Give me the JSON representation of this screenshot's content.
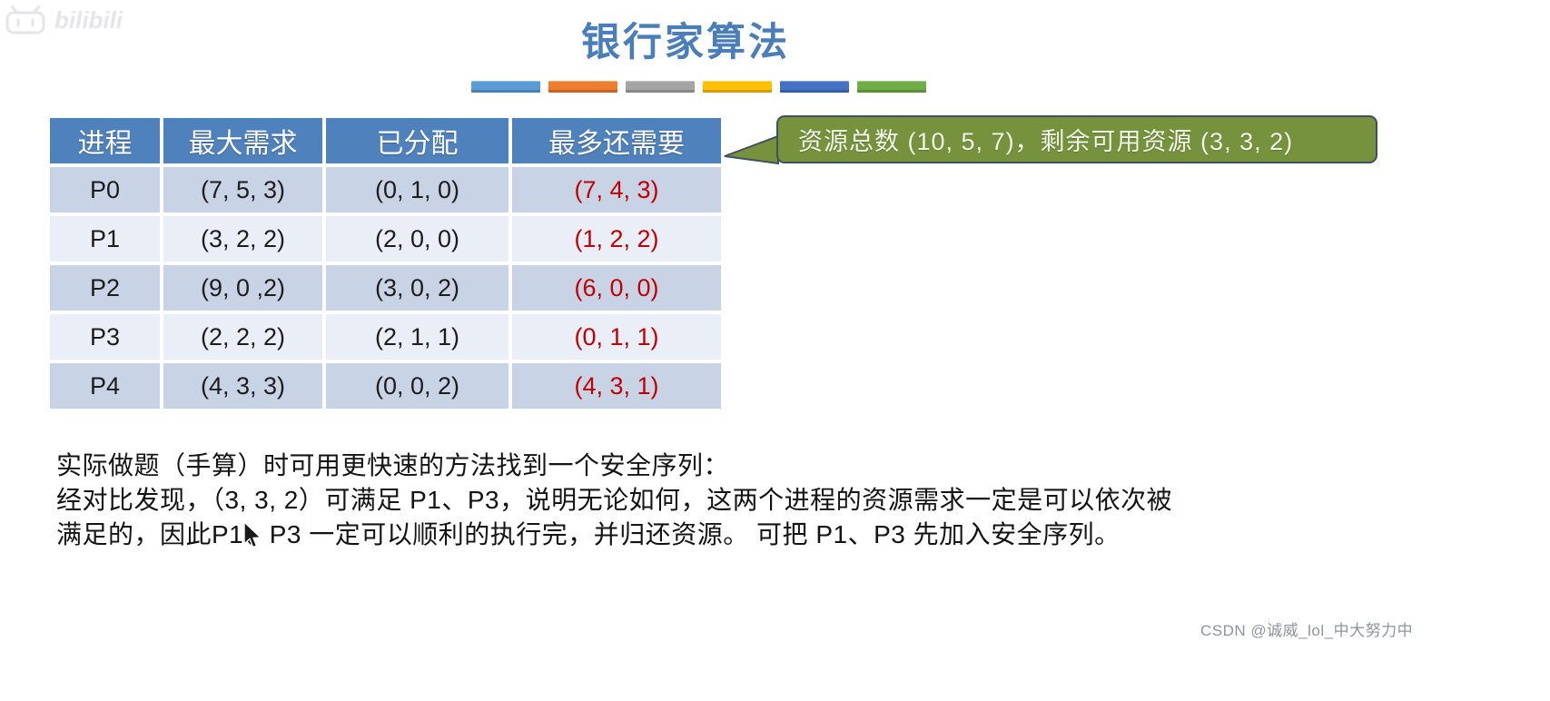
{
  "slide": {
    "title": "银行家算法",
    "accent_bar_colors": [
      "#5B9BD5",
      "#ED7D31",
      "#A5A5A5",
      "#FFC000",
      "#4472C4",
      "#70AD47"
    ]
  },
  "callout": {
    "text": "资源总数 (10, 5, 7)，剩余可用资源 (3, 3, 2)",
    "bg_color": "#76923C",
    "border_color": "#3E5062",
    "text_color": "#F2F6EA"
  },
  "table": {
    "header_bg": "#4F81BD",
    "header_text_color": "#FFFFFF",
    "row_bg_odd": "#C9D3E6",
    "row_bg_even": "#EAEEF6",
    "need_text_color": "#C00000",
    "headers": [
      "进程",
      "最大需求",
      "已分配",
      "最多还需要"
    ],
    "rows": [
      {
        "process": "P0",
        "max": "(7, 5, 3)",
        "allocated": "(0, 1, 0)",
        "need": "(7, 4, 3)"
      },
      {
        "process": "P1",
        "max": "(3, 2, 2)",
        "allocated": "(2, 0, 0)",
        "need": "(1, 2, 2)"
      },
      {
        "process": "P2",
        "max": "(9, 0 ,2)",
        "allocated": "(3, 0, 2)",
        "need": "(6, 0, 0)"
      },
      {
        "process": "P3",
        "max": "(2, 2, 2)",
        "allocated": "(2, 1, 1)",
        "need": "(0, 1, 1)"
      },
      {
        "process": "P4",
        "max": "(4, 3, 3)",
        "allocated": "(0, 0, 2)",
        "need": "(4, 3, 1)"
      }
    ]
  },
  "note": {
    "lines": [
      "实际做题（手算）时可用更快速的方法找到一个安全序列：",
      "经对比发现，（3, 3, 2）可满足 P1、P3，说明无论如何，这两个进程的资源需求一定是可以依次被",
      "满足的，因此P1、P3 一定可以顺利的执行完，并归还资源。 可把 P1、P3 先加入安全序列。"
    ]
  },
  "watermarks": {
    "top_left": "bilibili",
    "bottom_right": "CSDN @诚威_lol_中大努力中"
  }
}
